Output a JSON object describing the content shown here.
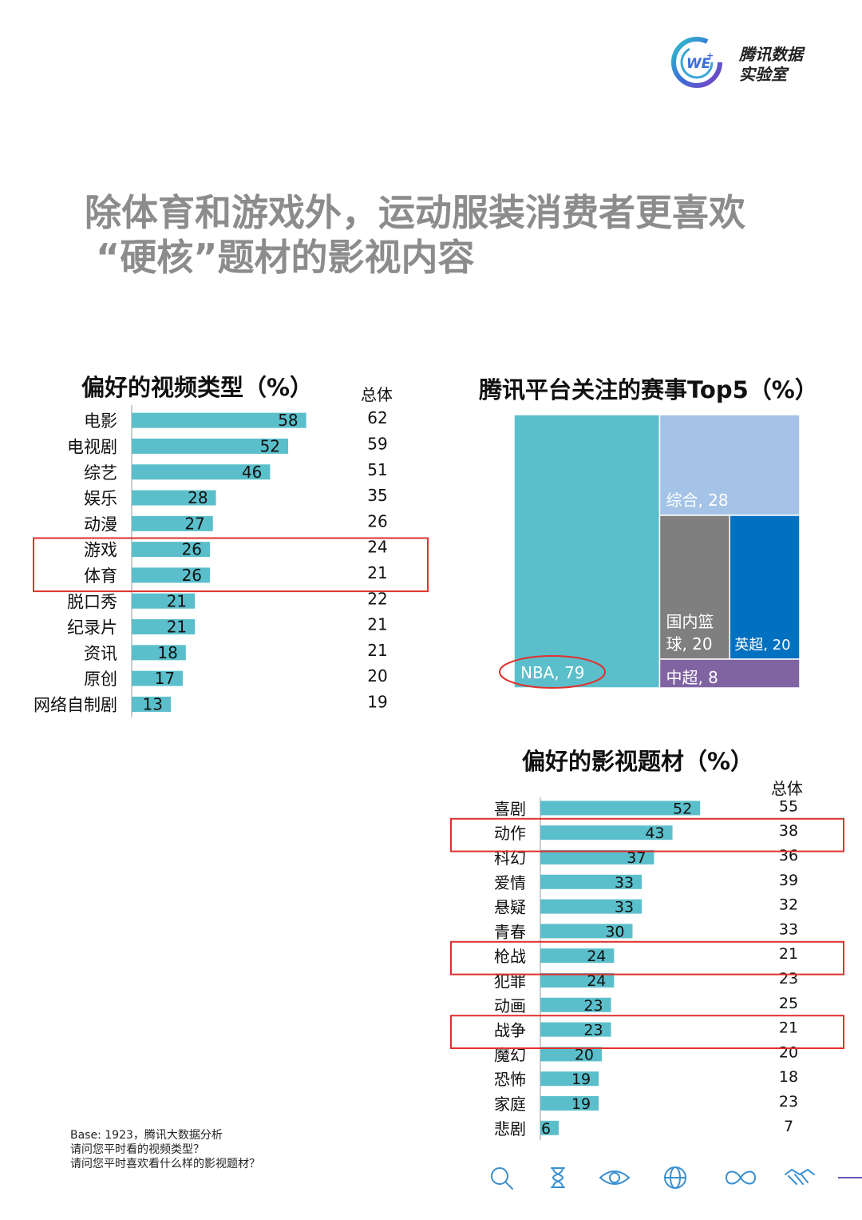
{
  "brand": {
    "logo_text": "WE",
    "logo_superscript": "+",
    "name_line1": "腾讯数据",
    "name_line2": "实验室"
  },
  "title": {
    "line1": "除体育和游戏外，运动服装消费者更喜欢",
    "line2": "“硬核”题材的影视内容"
  },
  "colors": {
    "bar": "#5bbfcb",
    "highlight": "#e0312f",
    "nba": "#5bbfcb",
    "zonghe": "#a4c3e6",
    "guonei": "#7f7f7f",
    "yingchao": "#0070c0",
    "zhongchao": "#8064a2"
  },
  "chart_data": [
    {
      "type": "bar",
      "title": "偏好的视频类型（%）",
      "total_header": "总体",
      "categories": [
        "电影",
        "电视剧",
        "综艺",
        "娱乐",
        "动漫",
        "游戏",
        "体育",
        "脱口秀",
        "纪录片",
        "资讯",
        "原创",
        "网络自制剧"
      ],
      "values": [
        58,
        52,
        46,
        28,
        27,
        26,
        26,
        21,
        21,
        18,
        17,
        13
      ],
      "totals": [
        62,
        59,
        51,
        35,
        26,
        24,
        21,
        22,
        21,
        21,
        20,
        19
      ],
      "highlighted": [
        "游戏",
        "体育"
      ]
    },
    {
      "type": "treemap",
      "title": "腾讯平台关注的赛事Top5（%）",
      "items": [
        {
          "name": "NBA",
          "value": 79,
          "label": "NBA, 79"
        },
        {
          "name": "综合",
          "value": 28,
          "label": "综合, 28"
        },
        {
          "name": "国内篮球",
          "value": 20,
          "label_line1": "国内篮",
          "label_line2": "球, 20"
        },
        {
          "name": "英超",
          "value": 20,
          "label": "英超, 20"
        },
        {
          "name": "中超",
          "value": 8,
          "label": "中超, 8"
        }
      ],
      "highlighted": [
        "NBA"
      ]
    },
    {
      "type": "bar",
      "title": "偏好的影视题材（%）",
      "total_header": "总体",
      "categories": [
        "喜剧",
        "动作",
        "科幻",
        "爱情",
        "悬疑",
        "青春",
        "枪战",
        "犯罪",
        "动画",
        "战争",
        "魔幻",
        "恐怖",
        "家庭",
        "悲剧"
      ],
      "values": [
        52,
        43,
        37,
        33,
        33,
        30,
        24,
        24,
        23,
        23,
        20,
        19,
        19,
        6
      ],
      "totals": [
        55,
        38,
        36,
        39,
        32,
        33,
        21,
        23,
        25,
        21,
        20,
        18,
        23,
        7
      ],
      "highlighted": [
        "动作",
        "枪战",
        "战争"
      ]
    }
  ],
  "footer": {
    "base": "Base: 1923，腾讯大数据分析",
    "q1": "请问您平时看的视频类型？",
    "q2": "请问您平时喜欢看什么样的影视题材？"
  },
  "bottom_icons": [
    "search-icon",
    "hourglass-icon",
    "eye-icon",
    "globe-icon",
    "infinity-icon",
    "handshake-icon"
  ]
}
